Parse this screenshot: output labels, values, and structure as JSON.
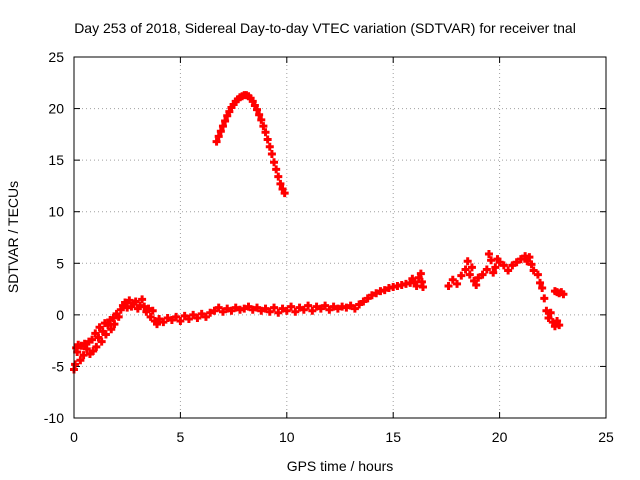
{
  "chart_data": {
    "type": "scatter",
    "title": "Day 253 of 2018, Sidereal Day-to-day VTEC variation (SDTVAR) for receiver tnal",
    "xlabel": "GPS time / hours",
    "ylabel": "SDTVAR / TECUs",
    "xlim": [
      0,
      25
    ],
    "ylim": [
      -10,
      25
    ],
    "xticks": [
      0,
      5,
      10,
      15,
      20,
      25
    ],
    "yticks": [
      -10,
      -5,
      0,
      5,
      10,
      15,
      20,
      25
    ],
    "grid": true,
    "marker": "+",
    "series_color": "#ff0000",
    "series": [
      {
        "name": "SDTVAR",
        "points": [
          [
            0.0,
            -5.3
          ],
          [
            0.05,
            -4.8
          ],
          [
            0.1,
            -3.2
          ],
          [
            0.15,
            -3.6
          ],
          [
            0.2,
            -2.9
          ],
          [
            0.3,
            -4.4
          ],
          [
            0.35,
            -3.0
          ],
          [
            0.45,
            -3.9
          ],
          [
            0.5,
            -2.8
          ],
          [
            0.6,
            -3.3
          ],
          [
            0.7,
            -2.6
          ],
          [
            0.75,
            -3.8
          ],
          [
            0.85,
            -2.4
          ],
          [
            0.9,
            -3.5
          ],
          [
            1.0,
            -1.8
          ],
          [
            1.05,
            -3.1
          ],
          [
            1.15,
            -2.2
          ],
          [
            1.2,
            -1.2
          ],
          [
            1.3,
            -2.6
          ],
          [
            1.35,
            -1.6
          ],
          [
            1.45,
            -0.8
          ],
          [
            1.5,
            -1.9
          ],
          [
            1.6,
            -1.0
          ],
          [
            1.7,
            -0.5
          ],
          [
            1.75,
            -1.4
          ],
          [
            1.85,
            -0.3
          ],
          [
            1.9,
            -0.9
          ],
          [
            2.0,
            0.1
          ],
          [
            2.1,
            -0.2
          ],
          [
            2.2,
            0.5
          ],
          [
            2.3,
            0.9
          ],
          [
            2.4,
            1.2
          ],
          [
            2.5,
            0.7
          ],
          [
            2.6,
            1.4
          ],
          [
            2.7,
            0.8
          ],
          [
            2.8,
            1.1
          ],
          [
            2.9,
            1.3
          ],
          [
            3.0,
            0.6
          ],
          [
            3.1,
            0.9
          ],
          [
            3.2,
            1.5
          ],
          [
            3.3,
            0.8
          ],
          [
            3.4,
            0.3
          ],
          [
            3.5,
            0.6
          ],
          [
            3.6,
            -0.2
          ],
          [
            3.7,
            0.4
          ],
          [
            3.8,
            -0.6
          ],
          [
            3.9,
            -0.9
          ],
          [
            4.0,
            -0.4
          ],
          [
            4.2,
            -0.7
          ],
          [
            4.4,
            -0.3
          ],
          [
            4.6,
            -0.5
          ],
          [
            4.8,
            -0.2
          ],
          [
            5.0,
            -0.6
          ],
          [
            5.2,
            -0.1
          ],
          [
            5.4,
            -0.4
          ],
          [
            5.6,
            0.0
          ],
          [
            5.8,
            -0.3
          ],
          [
            6.0,
            0.1
          ],
          [
            6.2,
            -0.2
          ],
          [
            6.4,
            0.2
          ],
          [
            6.6,
            0.4
          ],
          [
            6.8,
            0.7
          ],
          [
            7.0,
            0.3
          ],
          [
            7.2,
            0.6
          ],
          [
            7.4,
            0.4
          ],
          [
            7.6,
            0.7
          ],
          [
            7.8,
            0.5
          ],
          [
            8.0,
            0.6
          ],
          [
            8.2,
            0.8
          ],
          [
            8.4,
            0.5
          ],
          [
            8.6,
            0.7
          ],
          [
            8.8,
            0.4
          ],
          [
            9.0,
            0.6
          ],
          [
            9.2,
            0.3
          ],
          [
            9.4,
            0.7
          ],
          [
            9.6,
            0.2
          ],
          [
            9.8,
            0.6
          ],
          [
            10.0,
            0.4
          ],
          [
            10.2,
            0.8
          ],
          [
            10.4,
            0.3
          ],
          [
            10.6,
            0.7
          ],
          [
            10.8,
            0.5
          ],
          [
            11.0,
            0.9
          ],
          [
            11.2,
            0.4
          ],
          [
            11.4,
            0.8
          ],
          [
            11.6,
            0.6
          ],
          [
            11.8,
            0.9
          ],
          [
            12.0,
            0.5
          ],
          [
            12.2,
            0.8
          ],
          [
            12.4,
            0.6
          ],
          [
            12.6,
            0.8
          ],
          [
            12.8,
            0.7
          ],
          [
            13.0,
            0.9
          ],
          [
            13.2,
            0.6
          ],
          [
            13.4,
            1.0
          ],
          [
            13.6,
            1.3
          ],
          [
            13.8,
            1.6
          ],
          [
            14.0,
            1.9
          ],
          [
            14.2,
            2.1
          ],
          [
            14.4,
            2.3
          ],
          [
            14.6,
            2.4
          ],
          [
            14.8,
            2.6
          ],
          [
            15.0,
            2.7
          ],
          [
            15.2,
            2.8
          ],
          [
            15.4,
            2.9
          ],
          [
            15.6,
            3.0
          ],
          [
            15.8,
            3.1
          ],
          [
            15.9,
            3.5
          ],
          [
            16.0,
            3.2
          ],
          [
            16.1,
            2.8
          ],
          [
            16.2,
            3.6
          ],
          [
            16.3,
            4.0
          ],
          [
            16.35,
            3.2
          ],
          [
            16.4,
            2.7
          ],
          [
            17.6,
            2.8
          ],
          [
            17.8,
            3.4
          ],
          [
            18.0,
            3.0
          ],
          [
            18.2,
            3.8
          ],
          [
            18.4,
            4.4
          ],
          [
            18.5,
            5.2
          ],
          [
            18.6,
            3.9
          ],
          [
            18.7,
            4.6
          ],
          [
            18.8,
            3.3
          ],
          [
            18.9,
            2.9
          ],
          [
            19.0,
            3.6
          ],
          [
            19.2,
            3.9
          ],
          [
            19.4,
            4.4
          ],
          [
            19.5,
            5.9
          ],
          [
            19.6,
            5.3
          ],
          [
            19.7,
            4.1
          ],
          [
            19.8,
            4.6
          ],
          [
            19.9,
            5.4
          ],
          [
            20.0,
            5.1
          ],
          [
            20.2,
            4.8
          ],
          [
            20.4,
            4.3
          ],
          [
            20.6,
            4.8
          ],
          [
            20.8,
            5.1
          ],
          [
            21.0,
            5.4
          ],
          [
            21.2,
            5.7
          ],
          [
            21.3,
            5.2
          ],
          [
            21.4,
            5.6
          ],
          [
            21.5,
            4.9
          ],
          [
            21.6,
            4.3
          ],
          [
            21.8,
            3.9
          ],
          [
            21.9,
            3.1
          ],
          [
            22.0,
            2.6
          ],
          [
            22.1,
            1.6
          ],
          [
            22.2,
            0.4
          ],
          [
            22.3,
            -0.3
          ],
          [
            22.4,
            0.2
          ],
          [
            22.5,
            -0.7
          ],
          [
            22.6,
            -1.1
          ],
          [
            22.7,
            -0.6
          ],
          [
            22.8,
            -1.0
          ],
          [
            22.6,
            2.3
          ],
          [
            22.7,
            2.2
          ],
          [
            22.8,
            2.1
          ],
          [
            22.9,
            2.2
          ],
          [
            23.0,
            2.0
          ],
          [
            6.7,
            16.8
          ],
          [
            6.8,
            17.3
          ],
          [
            6.9,
            17.8
          ],
          [
            7.0,
            18.3
          ],
          [
            7.1,
            18.8
          ],
          [
            7.2,
            19.3
          ],
          [
            7.3,
            19.7
          ],
          [
            7.4,
            20.1
          ],
          [
            7.5,
            20.4
          ],
          [
            7.6,
            20.7
          ],
          [
            7.7,
            20.9
          ],
          [
            7.8,
            21.1
          ],
          [
            7.9,
            21.2
          ],
          [
            8.0,
            21.3
          ],
          [
            8.1,
            21.3
          ],
          [
            8.2,
            21.2
          ],
          [
            8.3,
            21.0
          ],
          [
            8.4,
            20.7
          ],
          [
            8.5,
            20.3
          ],
          [
            8.6,
            19.9
          ],
          [
            8.7,
            19.4
          ],
          [
            8.8,
            18.9
          ],
          [
            8.9,
            18.3
          ],
          [
            9.0,
            17.7
          ],
          [
            9.1,
            17.0
          ],
          [
            9.2,
            16.3
          ],
          [
            9.3,
            15.6
          ],
          [
            9.4,
            14.8
          ],
          [
            9.5,
            14.1
          ],
          [
            9.6,
            13.4
          ],
          [
            9.7,
            12.7
          ],
          [
            9.8,
            12.2
          ],
          [
            9.9,
            11.8
          ]
        ]
      }
    ]
  }
}
